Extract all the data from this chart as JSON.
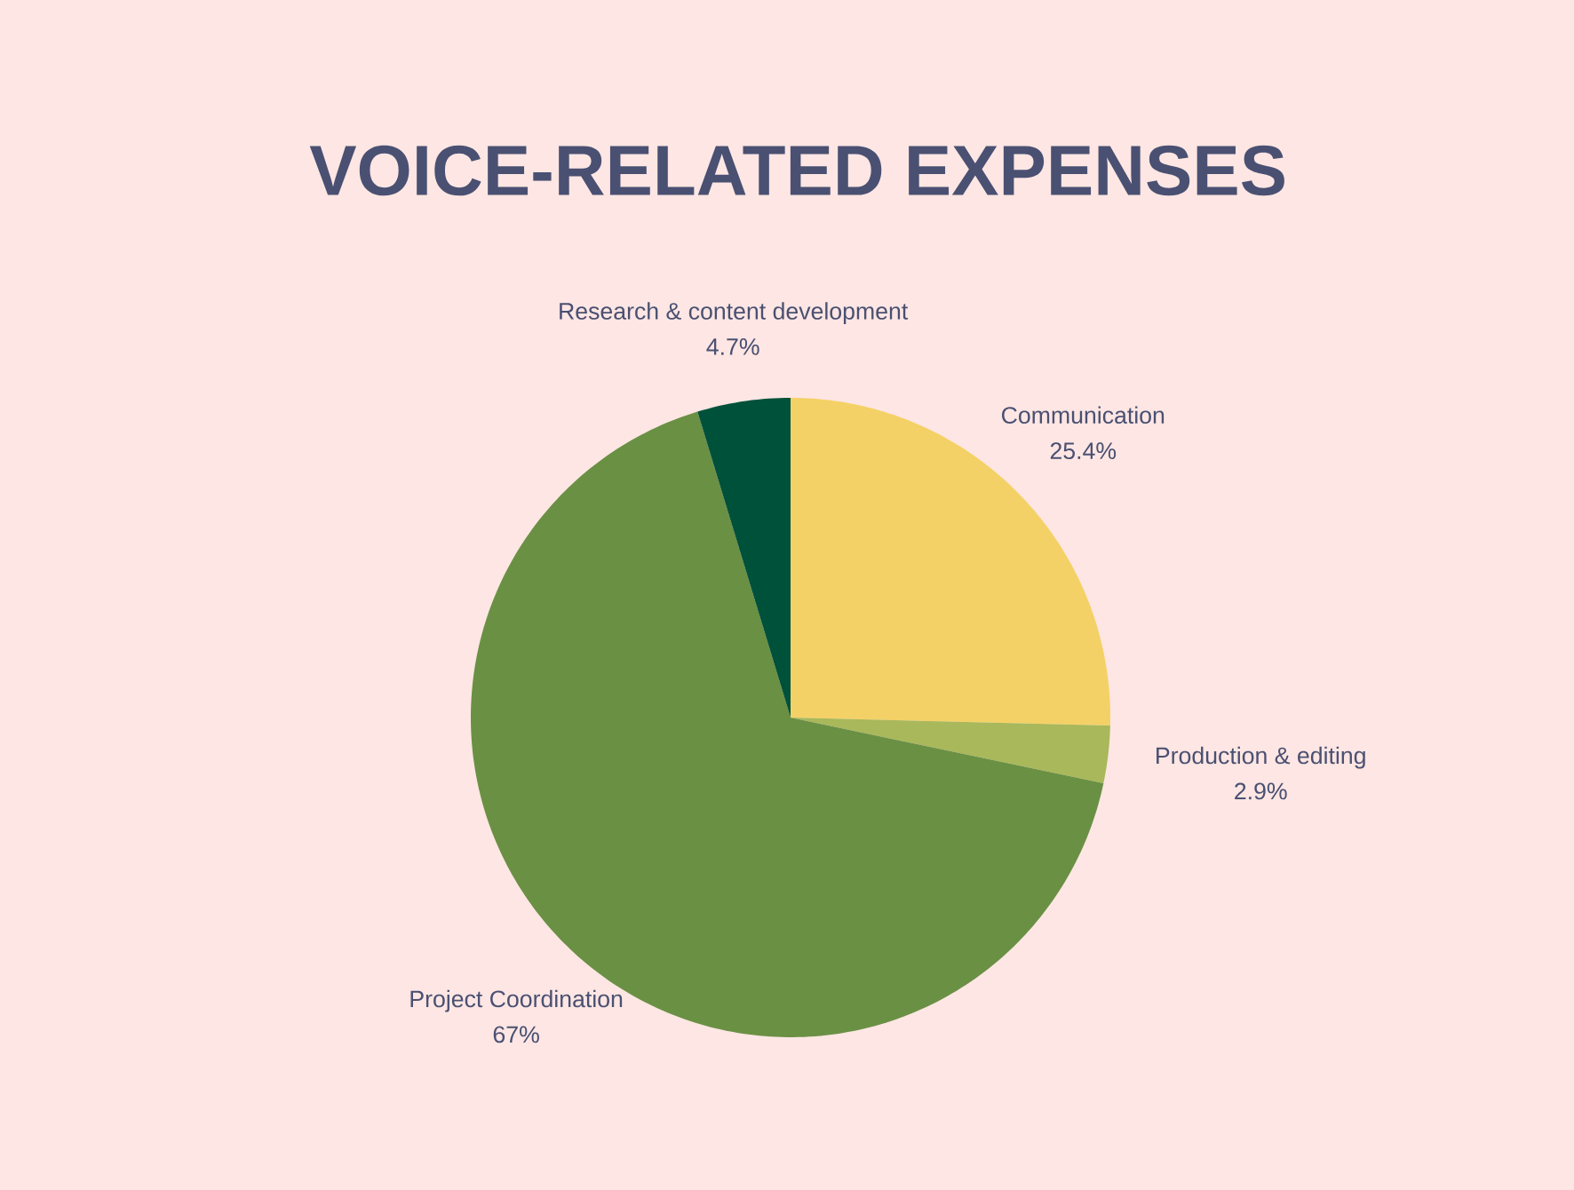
{
  "chart_data": {
    "type": "pie",
    "title": "VOICE-RELATED EXPENSES",
    "categories": [
      "Communication",
      "Production & editing",
      "Project Coordination",
      "Research & content development"
    ],
    "values": [
      25.4,
      2.9,
      67,
      4.7
    ],
    "value_labels": [
      "25.4%",
      "2.9%",
      "67%",
      "4.7%"
    ],
    "colors": [
      "#f4d166",
      "#a9b85a",
      "#6a9044",
      "#00513a"
    ]
  }
}
